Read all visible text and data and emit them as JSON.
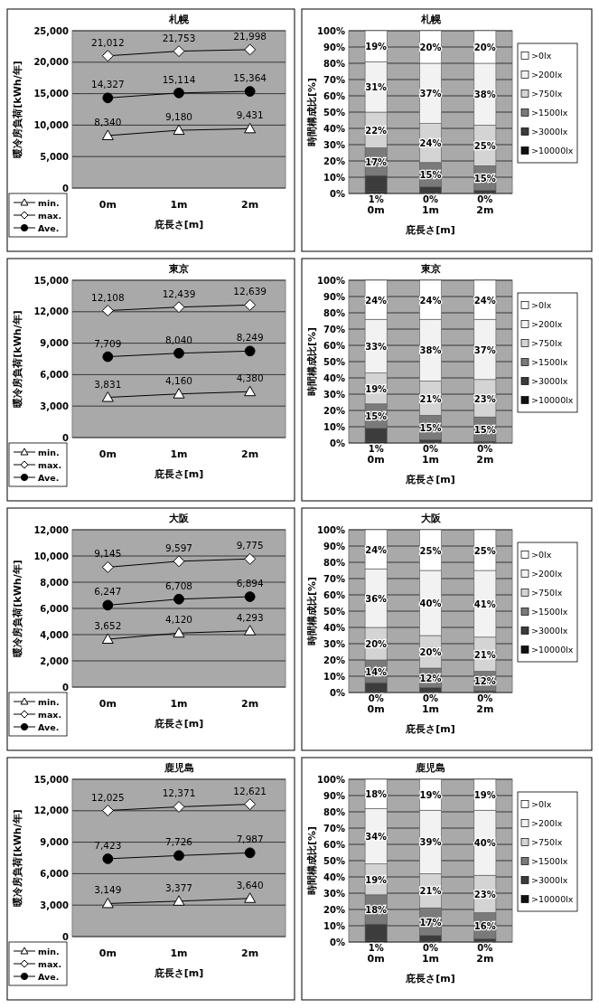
{
  "chart_data": [
    {
      "type": "line",
      "title": "札幌",
      "xlabel": "庇長さ[m]",
      "ylabel": "暖冷房負荷[kWh/年]",
      "categories": [
        "0m",
        "1m",
        "2m"
      ],
      "ylim": [
        0,
        25000
      ],
      "yticks": [
        {
          "value": 0,
          "label": "0"
        },
        {
          "value": 5000,
          "label": "5,000"
        },
        {
          "value": 10000,
          "label": "10,000"
        },
        {
          "value": 15000,
          "label": "15,000"
        },
        {
          "value": 20000,
          "label": "20,000"
        },
        {
          "value": 25000,
          "label": "25,000"
        }
      ],
      "grid": "y",
      "legend": "bottom left",
      "series": [
        {
          "name": "min.",
          "color": "#000000",
          "marker": "triangle",
          "values": [
            8340,
            9180,
            9431
          ],
          "value_labels": [
            "8,340",
            "9,180",
            "9,431"
          ]
        },
        {
          "name": "max.",
          "color": "#000000",
          "marker": "diamond",
          "values": [
            21012,
            21753,
            21998
          ],
          "value_labels": [
            "21,012",
            "21,753",
            "21,998"
          ]
        },
        {
          "name": "Ave.",
          "color": "#000000",
          "marker": "circle",
          "values": [
            14327,
            15114,
            15364
          ],
          "value_labels": [
            "14,327",
            "15,114",
            "15,364"
          ]
        }
      ]
    },
    {
      "type": "bar",
      "stacked": true,
      "title": "札幌",
      "xlabel": "庇長さ[m]",
      "ylabel": "時間構成比[%]",
      "categories": [
        "0m",
        "1m",
        "2m"
      ],
      "ylim": [
        0,
        100
      ],
      "yticks": [
        {
          "value": 0,
          "label": "0%"
        },
        {
          "value": 10,
          "label": "10%"
        },
        {
          "value": 20,
          "label": "20%"
        },
        {
          "value": 30,
          "label": "30%"
        },
        {
          "value": 40,
          "label": "40%"
        },
        {
          "value": 50,
          "label": "50%"
        },
        {
          "value": 60,
          "label": "60%"
        },
        {
          "value": 70,
          "label": "70%"
        },
        {
          "value": 80,
          "label": "80%"
        },
        {
          "value": 90,
          "label": "90%"
        },
        {
          "value": 100,
          "label": "100%"
        }
      ],
      "grid": "y",
      "legend": "right",
      "series": [
        {
          "name": ">10000lx",
          "color": "#111111",
          "values": [
            1,
            0,
            0
          ],
          "value_labels": [
            "1%",
            "0%",
            "0%"
          ]
        },
        {
          "name": ">3000lx",
          "color": "#3c3c3c",
          "values": [
            10,
            4,
            2
          ],
          "value_labels": [
            null,
            null,
            null
          ]
        },
        {
          "name": ">1500lx",
          "color": "#7a7a7a",
          "values": [
            17,
            15,
            15
          ],
          "value_labels": [
            "17%",
            "15%",
            "15%"
          ]
        },
        {
          "name": ">750lx",
          "color": "#d4d4d4",
          "values": [
            22,
            24,
            25
          ],
          "value_labels": [
            "22%",
            "24%",
            "25%"
          ]
        },
        {
          "name": ">200lx",
          "color": "#f2f2f2",
          "values": [
            31,
            37,
            38
          ],
          "value_labels": [
            "31%",
            "37%",
            "38%"
          ]
        },
        {
          "name": ">0lx",
          "color": "#ffffff",
          "values": [
            19,
            20,
            20
          ],
          "value_labels": [
            "19%",
            "20%",
            "20%"
          ]
        }
      ]
    },
    {
      "type": "line",
      "title": "東京",
      "xlabel": "庇長さ[m]",
      "ylabel": "暖冷房負荷[kWh/年]",
      "categories": [
        "0m",
        "1m",
        "2m"
      ],
      "ylim": [
        0,
        15000
      ],
      "yticks": [
        {
          "value": 0,
          "label": "0"
        },
        {
          "value": 3000,
          "label": "3,000"
        },
        {
          "value": 6000,
          "label": "6,000"
        },
        {
          "value": 9000,
          "label": "9,000"
        },
        {
          "value": 12000,
          "label": "12,000"
        },
        {
          "value": 15000,
          "label": "15,000"
        }
      ],
      "grid": "y",
      "legend": "bottom left",
      "series": [
        {
          "name": "min.",
          "color": "#000000",
          "marker": "triangle",
          "values": [
            3831,
            4160,
            4380
          ],
          "value_labels": [
            "3,831",
            "4,160",
            "4,380"
          ]
        },
        {
          "name": "max.",
          "color": "#000000",
          "marker": "diamond",
          "values": [
            12108,
            12439,
            12639
          ],
          "value_labels": [
            "12,108",
            "12,439",
            "12,639"
          ]
        },
        {
          "name": "Ave.",
          "color": "#000000",
          "marker": "circle",
          "values": [
            7709,
            8040,
            8249
          ],
          "value_labels": [
            "7,709",
            "8,040",
            "8,249"
          ]
        }
      ]
    },
    {
      "type": "bar",
      "stacked": true,
      "title": "東京",
      "xlabel": "庇長さ[m]",
      "ylabel": "時間構成比[%]",
      "categories": [
        "0m",
        "1m",
        "2m"
      ],
      "ylim": [
        0,
        100
      ],
      "yticks": [
        {
          "value": 0,
          "label": "0%"
        },
        {
          "value": 10,
          "label": "10%"
        },
        {
          "value": 20,
          "label": "20%"
        },
        {
          "value": 30,
          "label": "30%"
        },
        {
          "value": 40,
          "label": "40%"
        },
        {
          "value": 50,
          "label": "50%"
        },
        {
          "value": 60,
          "label": "60%"
        },
        {
          "value": 70,
          "label": "70%"
        },
        {
          "value": 80,
          "label": "80%"
        },
        {
          "value": 90,
          "label": "90%"
        },
        {
          "value": 100,
          "label": "100%"
        }
      ],
      "grid": "y",
      "legend": "right",
      "series": [
        {
          "name": ">10000lx",
          "color": "#111111",
          "values": [
            1,
            0,
            0
          ],
          "value_labels": [
            "1%",
            "0%",
            "0%"
          ]
        },
        {
          "name": ">3000lx",
          "color": "#3c3c3c",
          "values": [
            8,
            2,
            1
          ],
          "value_labels": [
            null,
            null,
            null
          ]
        },
        {
          "name": ">1500lx",
          "color": "#7a7a7a",
          "values": [
            15,
            15,
            15
          ],
          "value_labels": [
            "15%",
            "15%",
            "15%"
          ]
        },
        {
          "name": ">750lx",
          "color": "#d4d4d4",
          "values": [
            19,
            21,
            23
          ],
          "value_labels": [
            "19%",
            "21%",
            "23%"
          ]
        },
        {
          "name": ">200lx",
          "color": "#f2f2f2",
          "values": [
            33,
            38,
            37
          ],
          "value_labels": [
            "33%",
            "38%",
            "37%"
          ]
        },
        {
          "name": ">0lx",
          "color": "#ffffff",
          "values": [
            24,
            24,
            24
          ],
          "value_labels": [
            "24%",
            "24%",
            "24%"
          ]
        }
      ]
    },
    {
      "type": "line",
      "title": "大阪",
      "xlabel": "庇長さ[m]",
      "ylabel": "暖冷房負荷[kWh/年]",
      "categories": [
        "0m",
        "1m",
        "2m"
      ],
      "ylim": [
        0,
        12000
      ],
      "yticks": [
        {
          "value": 0,
          "label": "0"
        },
        {
          "value": 2000,
          "label": "2,000"
        },
        {
          "value": 4000,
          "label": "4,000"
        },
        {
          "value": 6000,
          "label": "6,000"
        },
        {
          "value": 8000,
          "label": "8,000"
        },
        {
          "value": 10000,
          "label": "10,000"
        },
        {
          "value": 12000,
          "label": "12,000"
        }
      ],
      "grid": "y",
      "legend": "bottom left",
      "series": [
        {
          "name": "min.",
          "color": "#000000",
          "marker": "triangle",
          "values": [
            3652,
            4120,
            4293
          ],
          "value_labels": [
            "3,652",
            "4,120",
            "4,293"
          ]
        },
        {
          "name": "max.",
          "color": "#000000",
          "marker": "diamond",
          "values": [
            9145,
            9597,
            9775
          ],
          "value_labels": [
            "9,145",
            "9,597",
            "9,775"
          ]
        },
        {
          "name": "Ave.",
          "color": "#000000",
          "marker": "circle",
          "values": [
            6247,
            6708,
            6894
          ],
          "value_labels": [
            "6,247",
            "6,708",
            "6,894"
          ]
        }
      ]
    },
    {
      "type": "bar",
      "stacked": true,
      "title": "大阪",
      "xlabel": "庇長さ[m]",
      "ylabel": "時間構成比[%]",
      "categories": [
        "0m",
        "1m",
        "2m"
      ],
      "ylim": [
        0,
        100
      ],
      "yticks": [
        {
          "value": 0,
          "label": "0%"
        },
        {
          "value": 10,
          "label": "10%"
        },
        {
          "value": 20,
          "label": "20%"
        },
        {
          "value": 30,
          "label": "30%"
        },
        {
          "value": 40,
          "label": "40%"
        },
        {
          "value": 50,
          "label": "50%"
        },
        {
          "value": 60,
          "label": "60%"
        },
        {
          "value": 70,
          "label": "70%"
        },
        {
          "value": 80,
          "label": "80%"
        },
        {
          "value": 90,
          "label": "90%"
        },
        {
          "value": 100,
          "label": "100%"
        }
      ],
      "grid": "y",
      "legend": "right",
      "series": [
        {
          "name": ">10000lx",
          "color": "#111111",
          "values": [
            0,
            0,
            0
          ],
          "value_labels": [
            "0%",
            "0%",
            "0%"
          ]
        },
        {
          "name": ">3000lx",
          "color": "#3c3c3c",
          "values": [
            6,
            3,
            1
          ],
          "value_labels": [
            null,
            null,
            null
          ]
        },
        {
          "name": ">1500lx",
          "color": "#7a7a7a",
          "values": [
            14,
            12,
            12
          ],
          "value_labels": [
            "14%",
            "12%",
            "12%"
          ]
        },
        {
          "name": ">750lx",
          "color": "#d4d4d4",
          "values": [
            20,
            20,
            21
          ],
          "value_labels": [
            "20%",
            "20%",
            "21%"
          ]
        },
        {
          "name": ">200lx",
          "color": "#f2f2f2",
          "values": [
            36,
            40,
            41
          ],
          "value_labels": [
            "36%",
            "40%",
            "41%"
          ]
        },
        {
          "name": ">0lx",
          "color": "#ffffff",
          "values": [
            24,
            25,
            25
          ],
          "value_labels": [
            "24%",
            "25%",
            "25%"
          ]
        }
      ]
    },
    {
      "type": "line",
      "title": "鹿児島",
      "xlabel": "庇長さ[m]",
      "ylabel": "暖冷房負荷[kWh/年]",
      "categories": [
        "0m",
        "1m",
        "2m"
      ],
      "ylim": [
        0,
        15000
      ],
      "yticks": [
        {
          "value": 0,
          "label": "0"
        },
        {
          "value": 3000,
          "label": "3,000"
        },
        {
          "value": 6000,
          "label": "6,000"
        },
        {
          "value": 9000,
          "label": "9,000"
        },
        {
          "value": 12000,
          "label": "12,000"
        },
        {
          "value": 15000,
          "label": "15,000"
        }
      ],
      "grid": "y",
      "legend": "bottom left",
      "series": [
        {
          "name": "min.",
          "color": "#000000",
          "marker": "triangle",
          "values": [
            3149,
            3377,
            3640
          ],
          "value_labels": [
            "3,149",
            "3,377",
            "3,640"
          ]
        },
        {
          "name": "max.",
          "color": "#000000",
          "marker": "diamond",
          "values": [
            12025,
            12371,
            12621
          ],
          "value_labels": [
            "12,025",
            "12,371",
            "12,621"
          ]
        },
        {
          "name": "Ave.",
          "color": "#000000",
          "marker": "circle",
          "values": [
            7423,
            7726,
            7987
          ],
          "value_labels": [
            "7,423",
            "7,726",
            "7,987"
          ]
        }
      ]
    },
    {
      "type": "bar",
      "stacked": true,
      "title": "鹿児島",
      "xlabel": "庇長さ[m]",
      "ylabel": "時間構成比[%]",
      "categories": [
        "0m",
        "1m",
        "2m"
      ],
      "ylim": [
        0,
        100
      ],
      "yticks": [
        {
          "value": 0,
          "label": "0%"
        },
        {
          "value": 10,
          "label": "10%"
        },
        {
          "value": 20,
          "label": "20%"
        },
        {
          "value": 30,
          "label": "30%"
        },
        {
          "value": 40,
          "label": "40%"
        },
        {
          "value": 50,
          "label": "50%"
        },
        {
          "value": 60,
          "label": "60%"
        },
        {
          "value": 70,
          "label": "70%"
        },
        {
          "value": 80,
          "label": "80%"
        },
        {
          "value": 90,
          "label": "90%"
        },
        {
          "value": 100,
          "label": "100%"
        }
      ],
      "grid": "y",
      "legend": "right",
      "series": [
        {
          "name": ">10000lx",
          "color": "#111111",
          "values": [
            1,
            0,
            0
          ],
          "value_labels": [
            "1%",
            "0%",
            "0%"
          ]
        },
        {
          "name": ">3000lx",
          "color": "#3c3c3c",
          "values": [
            10,
            4,
            2
          ],
          "value_labels": [
            null,
            null,
            null
          ]
        },
        {
          "name": ">1500lx",
          "color": "#7a7a7a",
          "values": [
            18,
            17,
            16
          ],
          "value_labels": [
            "18%",
            "17%",
            "16%"
          ]
        },
        {
          "name": ">750lx",
          "color": "#d4d4d4",
          "values": [
            19,
            21,
            23
          ],
          "value_labels": [
            "19%",
            "21%",
            "23%"
          ]
        },
        {
          "name": ">200lx",
          "color": "#f2f2f2",
          "values": [
            34,
            39,
            40
          ],
          "value_labels": [
            "34%",
            "39%",
            "40%"
          ]
        },
        {
          "name": ">0lx",
          "color": "#ffffff",
          "values": [
            18,
            19,
            19
          ],
          "value_labels": [
            "18%",
            "19%",
            "19%"
          ]
        }
      ]
    }
  ]
}
